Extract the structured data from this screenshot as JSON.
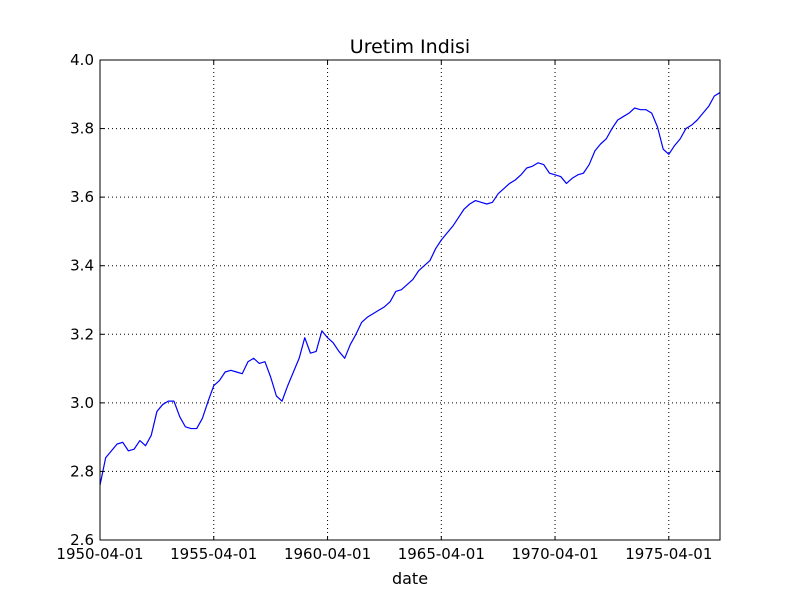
{
  "chart_data": {
    "type": "line",
    "title": "Uretim Indisi",
    "xlabel": "date",
    "ylabel": "",
    "xlim": [
      "1950-04-01",
      "1977-07-01"
    ],
    "ylim": [
      2.6,
      4.0
    ],
    "grid": true,
    "x_ticks": [
      "1950-04-01",
      "1955-04-01",
      "1960-04-01",
      "1965-04-01",
      "1970-04-01",
      "1975-04-01"
    ],
    "y_ticks": [
      "2.6",
      "2.8",
      "3.0",
      "3.2",
      "3.4",
      "3.6",
      "3.8",
      "4.0"
    ],
    "series": [
      {
        "color": "#0000ff",
        "points": [
          [
            "1950-04-01",
            2.76
          ],
          [
            "1950-07-01",
            2.84
          ],
          [
            "1950-10-01",
            2.86
          ],
          [
            "1951-01-01",
            2.88
          ],
          [
            "1951-04-01",
            2.885
          ],
          [
            "1951-07-01",
            2.86
          ],
          [
            "1951-10-01",
            2.865
          ],
          [
            "1952-01-01",
            2.89
          ],
          [
            "1952-04-01",
            2.875
          ],
          [
            "1952-07-01",
            2.905
          ],
          [
            "1952-10-01",
            2.975
          ],
          [
            "1953-01-01",
            2.995
          ],
          [
            "1953-04-01",
            3.005
          ],
          [
            "1953-07-01",
            3.005
          ],
          [
            "1953-10-01",
            2.96
          ],
          [
            "1954-01-01",
            2.93
          ],
          [
            "1954-04-01",
            2.925
          ],
          [
            "1954-07-01",
            2.925
          ],
          [
            "1954-10-01",
            2.955
          ],
          [
            "1955-01-01",
            3.005
          ],
          [
            "1955-04-01",
            3.05
          ],
          [
            "1955-07-01",
            3.065
          ],
          [
            "1955-10-01",
            3.09
          ],
          [
            "1956-01-01",
            3.095
          ],
          [
            "1956-04-01",
            3.09
          ],
          [
            "1956-07-01",
            3.085
          ],
          [
            "1956-10-01",
            3.12
          ],
          [
            "1957-01-01",
            3.13
          ],
          [
            "1957-04-01",
            3.115
          ],
          [
            "1957-07-01",
            3.12
          ],
          [
            "1957-10-01",
            3.075
          ],
          [
            "1958-01-01",
            3.02
          ],
          [
            "1958-04-01",
            3.005
          ],
          [
            "1958-07-01",
            3.05
          ],
          [
            "1958-10-01",
            3.09
          ],
          [
            "1959-01-01",
            3.13
          ],
          [
            "1959-04-01",
            3.19
          ],
          [
            "1959-07-01",
            3.145
          ],
          [
            "1959-10-01",
            3.15
          ],
          [
            "1960-01-01",
            3.21
          ],
          [
            "1960-04-01",
            3.19
          ],
          [
            "1960-07-01",
            3.175
          ],
          [
            "1960-10-01",
            3.15
          ],
          [
            "1961-01-01",
            3.13
          ],
          [
            "1961-04-01",
            3.17
          ],
          [
            "1961-07-01",
            3.2
          ],
          [
            "1961-10-01",
            3.235
          ],
          [
            "1962-01-01",
            3.25
          ],
          [
            "1962-04-01",
            3.26
          ],
          [
            "1962-07-01",
            3.27
          ],
          [
            "1962-10-01",
            3.28
          ],
          [
            "1963-01-01",
            3.295
          ],
          [
            "1963-04-01",
            3.325
          ],
          [
            "1963-07-01",
            3.33
          ],
          [
            "1963-10-01",
            3.345
          ],
          [
            "1964-01-01",
            3.36
          ],
          [
            "1964-04-01",
            3.385
          ],
          [
            "1964-07-01",
            3.4
          ],
          [
            "1964-10-01",
            3.415
          ],
          [
            "1965-01-01",
            3.45
          ],
          [
            "1965-04-01",
            3.475
          ],
          [
            "1965-07-01",
            3.495
          ],
          [
            "1965-10-01",
            3.515
          ],
          [
            "1966-01-01",
            3.54
          ],
          [
            "1966-04-01",
            3.565
          ],
          [
            "1966-07-01",
            3.58
          ],
          [
            "1966-10-01",
            3.59
          ],
          [
            "1967-01-01",
            3.585
          ],
          [
            "1967-04-01",
            3.58
          ],
          [
            "1967-07-01",
            3.585
          ],
          [
            "1967-10-01",
            3.61
          ],
          [
            "1968-01-01",
            3.625
          ],
          [
            "1968-04-01",
            3.64
          ],
          [
            "1968-07-01",
            3.65
          ],
          [
            "1968-10-01",
            3.665
          ],
          [
            "1969-01-01",
            3.685
          ],
          [
            "1969-04-01",
            3.69
          ],
          [
            "1969-07-01",
            3.7
          ],
          [
            "1969-10-01",
            3.695
          ],
          [
            "1970-01-01",
            3.67
          ],
          [
            "1970-04-01",
            3.665
          ],
          [
            "1970-07-01",
            3.66
          ],
          [
            "1970-10-01",
            3.64
          ],
          [
            "1971-01-01",
            3.655
          ],
          [
            "1971-04-01",
            3.665
          ],
          [
            "1971-07-01",
            3.67
          ],
          [
            "1971-10-01",
            3.695
          ],
          [
            "1972-01-01",
            3.735
          ],
          [
            "1972-04-01",
            3.755
          ],
          [
            "1972-07-01",
            3.77
          ],
          [
            "1972-10-01",
            3.8
          ],
          [
            "1973-01-01",
            3.825
          ],
          [
            "1973-04-01",
            3.835
          ],
          [
            "1973-07-01",
            3.845
          ],
          [
            "1973-10-01",
            3.86
          ],
          [
            "1974-01-01",
            3.855
          ],
          [
            "1974-04-01",
            3.855
          ],
          [
            "1974-07-01",
            3.845
          ],
          [
            "1974-10-01",
            3.805
          ],
          [
            "1975-01-01",
            3.74
          ],
          [
            "1975-04-01",
            3.725
          ],
          [
            "1975-07-01",
            3.75
          ],
          [
            "1975-10-01",
            3.77
          ],
          [
            "1976-01-01",
            3.8
          ],
          [
            "1976-04-01",
            3.81
          ],
          [
            "1976-07-01",
            3.825
          ],
          [
            "1976-10-01",
            3.845
          ],
          [
            "1977-01-01",
            3.865
          ],
          [
            "1977-04-01",
            3.895
          ],
          [
            "1977-07-01",
            3.905
          ]
        ]
      }
    ]
  }
}
